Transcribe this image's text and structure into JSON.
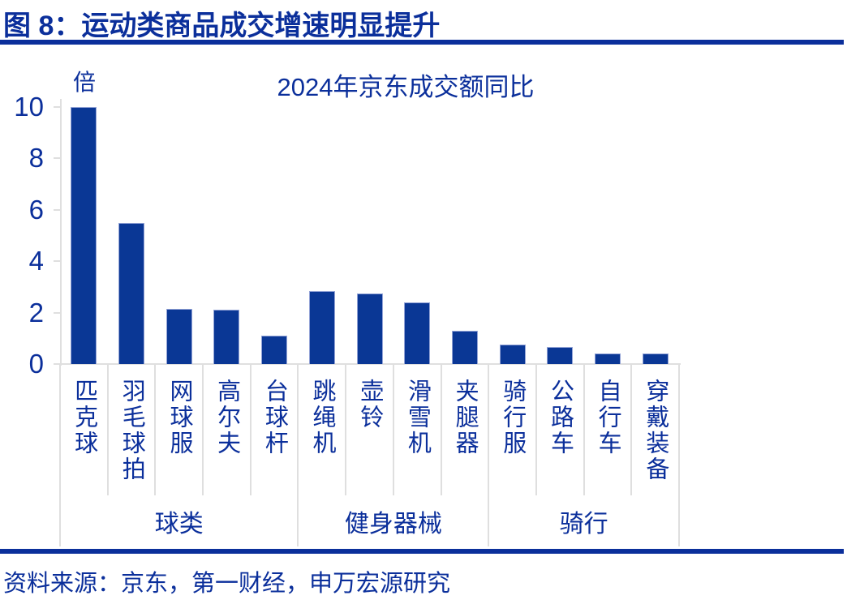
{
  "figure": {
    "title": "图 8：运动类商品成交增速明显提升",
    "source": "资料来源：京东，第一财经，申万宏源研究"
  },
  "colors": {
    "text_blue": "#0B2F9B",
    "bar_blue": "#0A3795",
    "axis_gray": "#DFDFDF",
    "bar_border": "#93A3D6"
  },
  "chart_data": {
    "type": "bar",
    "title": "2024年京东成交额同比",
    "unit_label": "倍",
    "categories": [
      "匹克球",
      "羽毛球拍",
      "网球服",
      "高尔夫",
      "台球杆",
      "跳绳机",
      "壶铃",
      "滑雪机",
      "夹腿器",
      "骑行服",
      "公路车",
      "自行车",
      "穿戴装备"
    ],
    "values": [
      10,
      5.5,
      2.15,
      2.1,
      1.1,
      2.85,
      2.75,
      2.4,
      1.3,
      0.75,
      0.65,
      0.4,
      0.4
    ],
    "groups": [
      {
        "label": "球类",
        "span": 5
      },
      {
        "label": "健身器械",
        "span": 4
      },
      {
        "label": "骑行",
        "span": 4
      }
    ],
    "xlabel": "",
    "ylabel": "",
    "ylim": [
      0,
      10
    ],
    "yticks": [
      0,
      2,
      4,
      6,
      8,
      10
    ],
    "grid": false,
    "legend_position": "none"
  }
}
